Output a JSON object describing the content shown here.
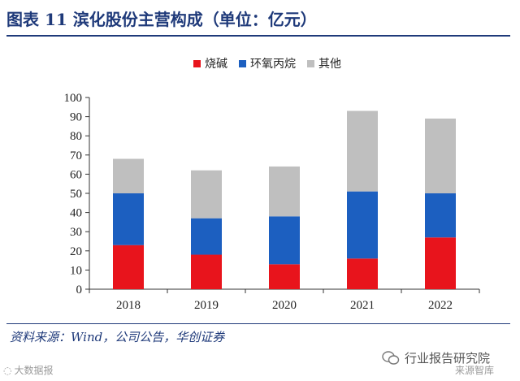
{
  "header": {
    "title": "图表 11  滨化股份主营构成（单位：亿元）"
  },
  "source": {
    "text": "资料来源：Wind，公司公告，华创证券"
  },
  "watermarks": {
    "left": "大数据报",
    "right": "行业报告研究院",
    "right_sub": "来源智库"
  },
  "colors": {
    "caustic_soda": "#e8141c",
    "epichlorohydrin": "#1c5fc0",
    "other": "#bfbfbf",
    "title": "#1f3a7a"
  },
  "chart_data": {
    "type": "bar",
    "stacked": true,
    "title": "滨化股份主营构成（单位：亿元）",
    "xlabel": "",
    "ylabel": "",
    "categories": [
      "2018",
      "2019",
      "2020",
      "2021",
      "2022"
    ],
    "series": [
      {
        "name": "烧碱",
        "color": "#e8141c",
        "values": [
          23,
          18,
          13,
          16,
          27
        ]
      },
      {
        "name": "环氧丙烷",
        "color": "#1c5fc0",
        "values": [
          27,
          19,
          25,
          35,
          23
        ]
      },
      {
        "name": "其他",
        "color": "#bfbfbf",
        "values": [
          18,
          25,
          26,
          42,
          39
        ]
      }
    ],
    "ylim": [
      0,
      100
    ],
    "yticks": [
      "0",
      "10",
      "20",
      "30",
      "40",
      "50",
      "60",
      "70",
      "80",
      "90",
      "100"
    ],
    "legend_position": "top-center",
    "grid": false
  }
}
